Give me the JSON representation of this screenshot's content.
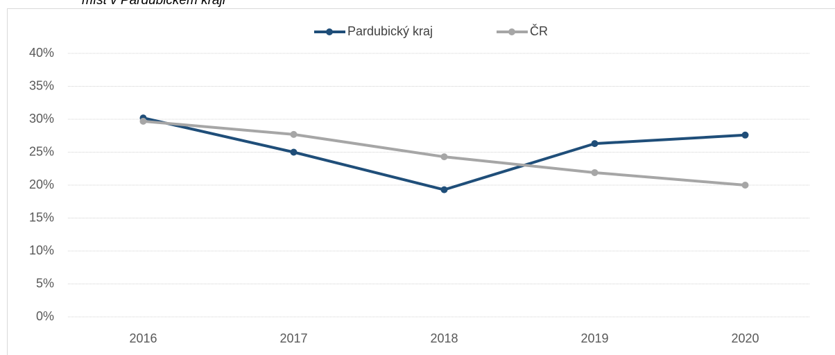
{
  "chart_data": {
    "type": "line",
    "title": "míst v Pardubickém kraji",
    "categories": [
      "2016",
      "2017",
      "2018",
      "2019",
      "2020"
    ],
    "series": [
      {
        "name": "Pardubický kraj",
        "color": "#1f4e79",
        "values": [
          30.2,
          25.0,
          19.3,
          26.3,
          27.6
        ]
      },
      {
        "name": "ČR",
        "color": "#a6a6a6",
        "values": [
          29.7,
          27.7,
          24.3,
          21.9,
          20.0
        ]
      }
    ],
    "ylim": [
      0,
      40
    ],
    "yticks": [
      {
        "value": 0,
        "label": "0%"
      },
      {
        "value": 5,
        "label": "5%"
      },
      {
        "value": 10,
        "label": "10%"
      },
      {
        "value": 15,
        "label": "15%"
      },
      {
        "value": 20,
        "label": "20%"
      },
      {
        "value": 25,
        "label": "25%"
      },
      {
        "value": 30,
        "label": "30%"
      },
      {
        "value": 35,
        "label": "35%"
      },
      {
        "value": 40,
        "label": "40%"
      }
    ],
    "grid": true,
    "legend": "top"
  }
}
